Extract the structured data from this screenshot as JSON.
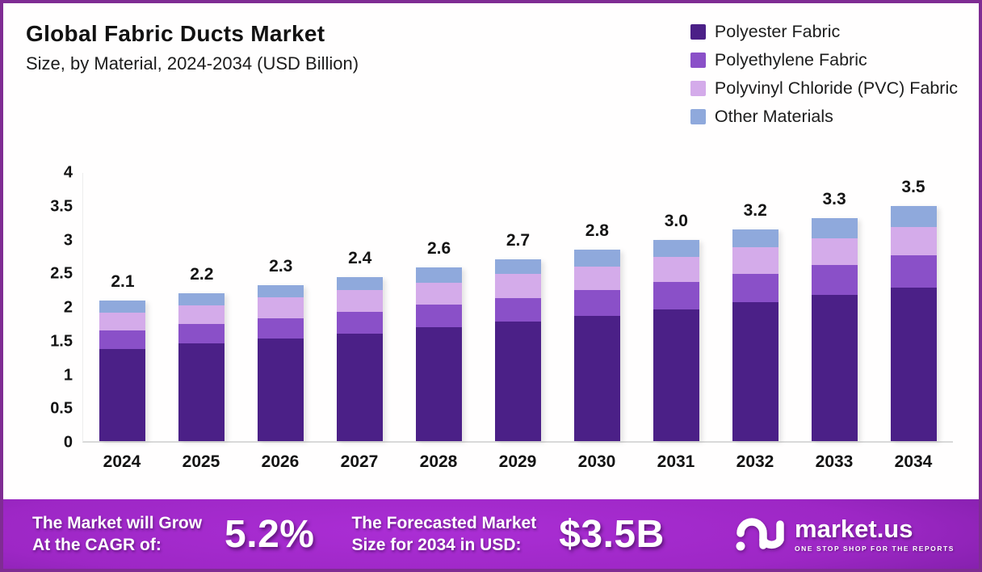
{
  "header": {
    "title": "Global Fabric Ducts Market",
    "subtitle": "Size, by Material, 2024-2034 (USD Billion)"
  },
  "chart_data": {
    "type": "bar",
    "stacked": true,
    "title": "Global Fabric Ducts Market Size, by Material, 2024-2034 (USD Billion)",
    "categories": [
      "2024",
      "2025",
      "2026",
      "2027",
      "2028",
      "2029",
      "2030",
      "2031",
      "2032",
      "2033",
      "2034"
    ],
    "series": [
      {
        "name": "Polyester Fabric",
        "color": "#4b2087",
        "values": [
          1.37,
          1.45,
          1.52,
          1.59,
          1.69,
          1.77,
          1.86,
          1.95,
          2.06,
          2.17,
          2.28
        ]
      },
      {
        "name": "Polyethylene Fabric",
        "color": "#8a50c8",
        "values": [
          0.27,
          0.29,
          0.3,
          0.33,
          0.33,
          0.35,
          0.38,
          0.41,
          0.42,
          0.44,
          0.47
        ]
      },
      {
        "name": "Polyvinyl Chloride (PVC) Fabric",
        "color": "#d4abea",
        "values": [
          0.26,
          0.27,
          0.31,
          0.32,
          0.33,
          0.36,
          0.35,
          0.37,
          0.39,
          0.4,
          0.42
        ]
      },
      {
        "name": "Other Materials",
        "color": "#8fa9dc",
        "values": [
          0.18,
          0.18,
          0.18,
          0.19,
          0.22,
          0.21,
          0.25,
          0.25,
          0.27,
          0.29,
          0.31
        ]
      }
    ],
    "total_labels": [
      "2.1",
      "2.2",
      "2.3",
      "2.4",
      "2.6",
      "2.7",
      "2.8",
      "3.0",
      "3.2",
      "3.3",
      "3.5"
    ],
    "yticks": [
      "0",
      "0.5",
      "1",
      "1.5",
      "2",
      "2.5",
      "3",
      "3.5",
      "4"
    ],
    "ytick_values": [
      0,
      0.5,
      1,
      1.5,
      2,
      2.5,
      3,
      3.5,
      4
    ],
    "ylim": [
      0,
      4
    ],
    "xlabel": "",
    "ylabel": "",
    "grid": false,
    "legend_position": "top-right"
  },
  "footer": {
    "cagr_text_line1": "The Market will Grow",
    "cagr_text_line2": "At the CAGR of:",
    "cagr_value": "5.2%",
    "forecast_text_line1": "The Forecasted Market",
    "forecast_text_line2": "Size for 2034 in USD:",
    "forecast_value": "$3.5B",
    "logo_name": "market.us",
    "logo_tagline": "ONE STOP SHOP FOR THE REPORTS"
  },
  "colors": {
    "page_border": "#7f2c93",
    "baseline": "#d9d9d9",
    "footer_center": "#a72bd0",
    "footer_corner": "#371051",
    "text_dark": "#141414",
    "footer_text": "#ffffff"
  }
}
